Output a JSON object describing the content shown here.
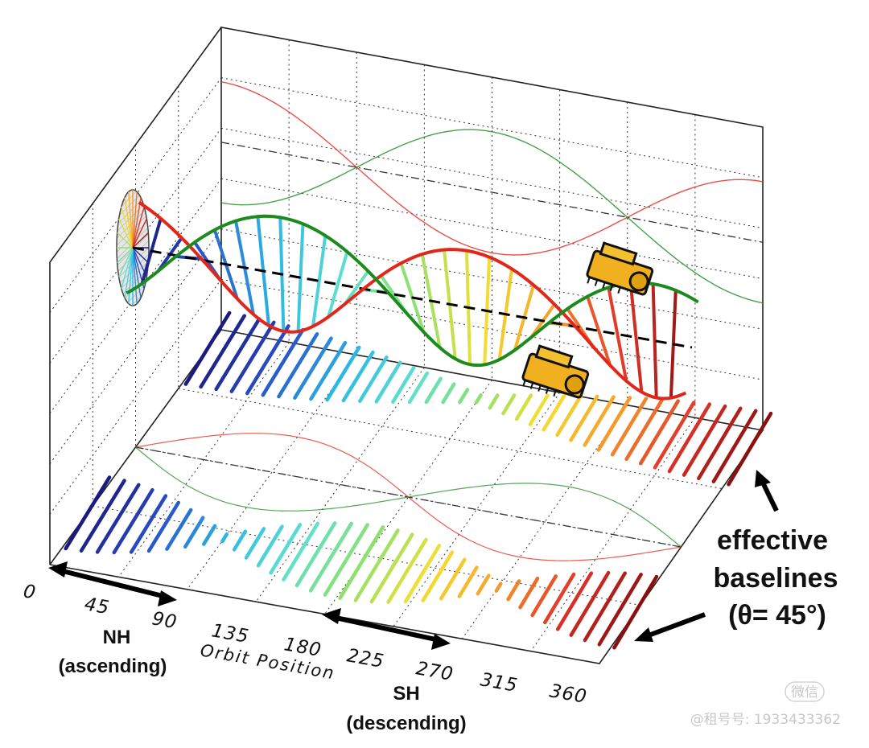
{
  "axis": {
    "title": "Orbit Position",
    "ticks": [
      "0",
      "45",
      "90",
      "135",
      "180",
      "225",
      "270",
      "315",
      "360"
    ]
  },
  "labels": {
    "nh_line1": "NH",
    "nh_line2": "(ascending)",
    "sh_line1": "SH",
    "sh_line2": "(descending)",
    "eff_line1": "effective",
    "eff_line2": "baselines",
    "eff_line3": "(θ= 45°)"
  },
  "watermark": {
    "badge": "微信",
    "text": "@租号号: 1933433362"
  },
  "colors": {
    "red_orbit": "#e2261a",
    "green_orbit": "#1c8a1c",
    "baseline_gradient": [
      "#1a1a80",
      "#2a4fc8",
      "#2bb7e6",
      "#5ee0d0",
      "#8ee070",
      "#f5e030",
      "#f59a2a",
      "#e0352a",
      "#8a1010"
    ]
  },
  "icons": [
    "satellite-icon",
    "satellite-icon",
    "orbit-disc-icon"
  ]
}
